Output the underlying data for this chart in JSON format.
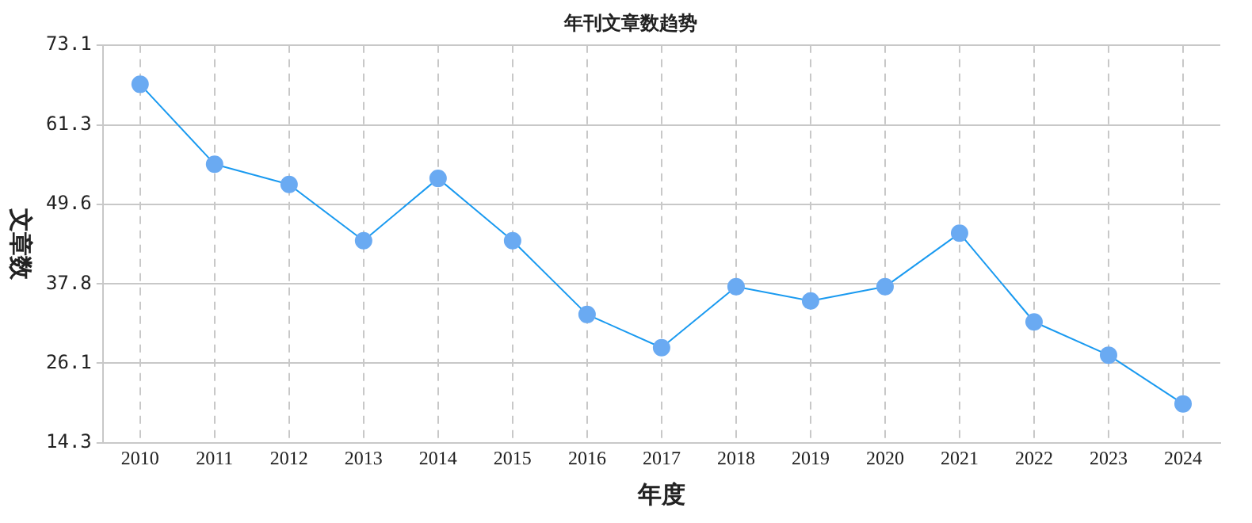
{
  "chart_data": {
    "type": "line",
    "title": "年刊文章数趋势",
    "xlabel": "年度",
    "ylabel": "文章数",
    "categories": [
      "2010",
      "2011",
      "2012",
      "2013",
      "2014",
      "2015",
      "2016",
      "2017",
      "2018",
      "2019",
      "2020",
      "2021",
      "2022",
      "2023",
      "2024"
    ],
    "series": [
      {
        "color": "#1a9af0",
        "values": [
          67.3,
          55.5,
          52.5,
          44.2,
          53.4,
          44.2,
          33.3,
          28.4,
          37.4,
          35.3,
          37.4,
          45.3,
          32.2,
          27.3,
          20.1
        ]
      }
    ],
    "ylim": [
      14.3,
      73.1
    ],
    "yticks": [
      14.3,
      26.1,
      37.8,
      49.6,
      61.3,
      73.1
    ],
    "grid": true,
    "legend": false,
    "marker": "circle",
    "line_style": "solid"
  }
}
